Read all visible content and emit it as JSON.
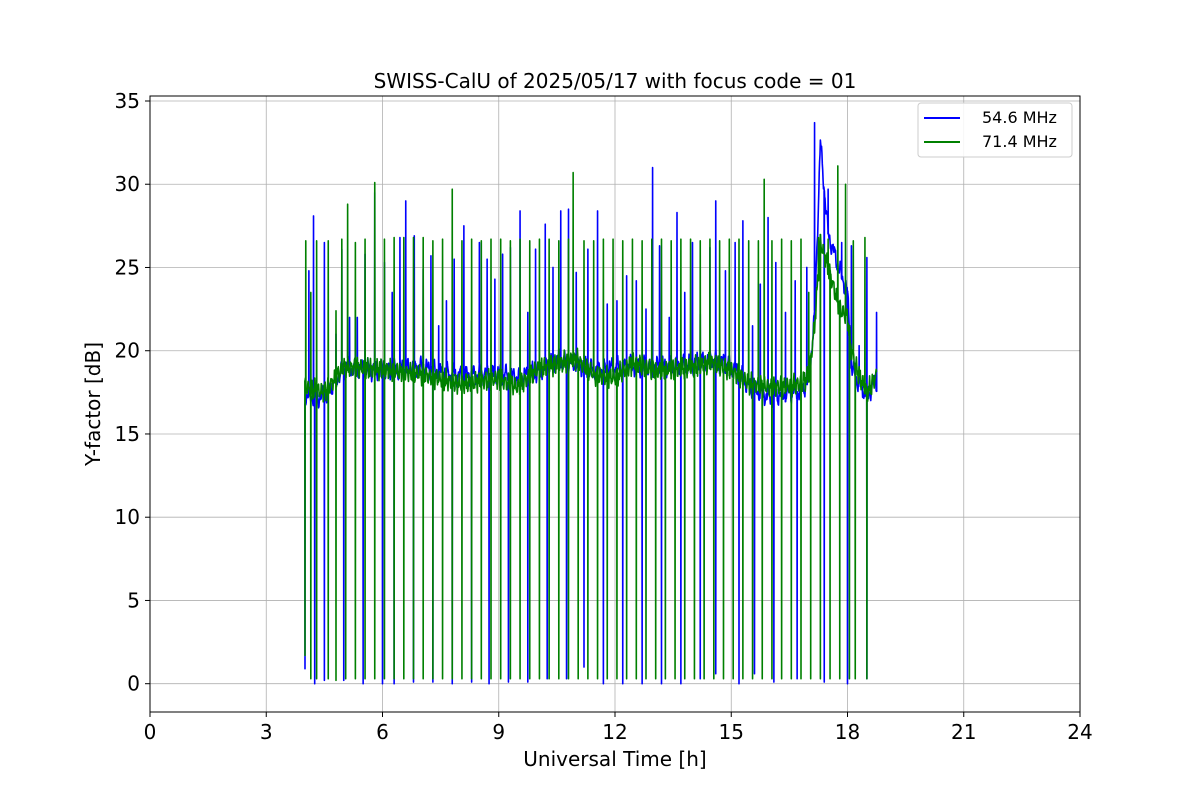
{
  "chart_data": {
    "type": "line",
    "title": "SWISS-CalU of 2025/05/17 with focus code = 01",
    "xlabel": "Universal Time [h]",
    "ylabel": "Y-factor [dB]",
    "xlim": [
      0,
      24
    ],
    "ylim": [
      -1.7,
      35.3
    ],
    "xticks": [
      0,
      3,
      6,
      9,
      12,
      15,
      18,
      21,
      24
    ],
    "yticks": [
      0,
      5,
      10,
      15,
      20,
      25,
      30,
      35
    ],
    "grid": true,
    "legend_position": "top-right",
    "data_start_h": 4.0,
    "data_end_h": 18.75,
    "series": [
      {
        "name": "54.6 MHz",
        "color": "#0000ff",
        "baseline": [
          [
            4.0,
            17.3
          ],
          [
            4.5,
            17.2
          ],
          [
            5.0,
            19.0
          ],
          [
            6.0,
            18.8
          ],
          [
            7.0,
            19.0
          ],
          [
            8.0,
            18.5
          ],
          [
            9.0,
            18.6
          ],
          [
            9.5,
            18.4
          ],
          [
            10.0,
            18.7
          ],
          [
            10.5,
            19.5
          ],
          [
            11.0,
            19.2
          ],
          [
            11.5,
            18.8
          ],
          [
            12.0,
            19.0
          ],
          [
            12.5,
            19.1
          ],
          [
            13.0,
            19.0
          ],
          [
            14.0,
            19.2
          ],
          [
            14.5,
            19.5
          ],
          [
            15.0,
            19.1
          ],
          [
            15.5,
            17.8
          ],
          [
            16.0,
            17.2
          ],
          [
            16.5,
            17.5
          ],
          [
            16.8,
            17.6
          ],
          [
            17.0,
            18.2
          ],
          [
            17.15,
            22.0
          ],
          [
            17.3,
            32.5
          ],
          [
            17.5,
            27.0
          ],
          [
            17.8,
            24.8
          ],
          [
            18.0,
            23.5
          ],
          [
            18.1,
            19.0
          ],
          [
            18.3,
            18.0
          ],
          [
            18.5,
            17.3
          ],
          [
            18.75,
            18.2
          ]
        ],
        "peaks": [
          [
            4.1,
            24.8
          ],
          [
            4.22,
            28.1
          ],
          [
            4.5,
            26.5
          ],
          [
            4.8,
            21.0
          ],
          [
            4.95,
            26.1
          ],
          [
            5.15,
            22.0
          ],
          [
            5.35,
            22.0
          ],
          [
            5.55,
            25.8
          ],
          [
            5.8,
            29.5
          ],
          [
            6.05,
            25.3
          ],
          [
            6.25,
            23.5
          ],
          [
            6.45,
            26.8
          ],
          [
            6.6,
            29.0
          ],
          [
            6.82,
            26.9
          ],
          [
            7.05,
            24.9
          ],
          [
            7.25,
            25.7
          ],
          [
            7.45,
            21.5
          ],
          [
            7.65,
            23.0
          ],
          [
            7.85,
            25.5
          ],
          [
            8.1,
            27.5
          ],
          [
            8.3,
            21.8
          ],
          [
            8.5,
            26.5
          ],
          [
            8.7,
            25.5
          ],
          [
            8.9,
            24.3
          ],
          [
            9.1,
            25.8
          ],
          [
            9.3,
            26.2
          ],
          [
            9.55,
            28.4
          ],
          [
            9.75,
            22.3
          ],
          [
            9.95,
            26.1
          ],
          [
            10.2,
            27.6
          ],
          [
            10.4,
            25.0
          ],
          [
            10.6,
            28.4
          ],
          [
            10.8,
            28.5
          ],
          [
            11.0,
            24.7
          ],
          [
            11.3,
            26.1
          ],
          [
            11.55,
            28.4
          ],
          [
            11.8,
            22.8
          ],
          [
            12.05,
            23.0
          ],
          [
            12.3,
            24.5
          ],
          [
            12.55,
            24.2
          ],
          [
            12.8,
            22.5
          ],
          [
            12.97,
            31.0
          ],
          [
            13.15,
            26.3
          ],
          [
            13.4,
            22.0
          ],
          [
            13.6,
            28.3
          ],
          [
            13.8,
            23.5
          ],
          [
            14.0,
            26.5
          ],
          [
            14.2,
            22.2
          ],
          [
            14.45,
            26.2
          ],
          [
            14.6,
            29.0
          ],
          [
            14.85,
            24.8
          ],
          [
            15.1,
            26.5
          ],
          [
            15.3,
            27.8
          ],
          [
            15.55,
            21.5
          ],
          [
            15.75,
            24.0
          ],
          [
            15.95,
            28.0
          ],
          [
            16.15,
            25.3
          ],
          [
            16.4,
            22.3
          ],
          [
            16.65,
            24.2
          ],
          [
            16.95,
            25.0
          ],
          [
            17.15,
            33.7
          ],
          [
            17.5,
            29.7
          ],
          [
            17.85,
            26.5
          ],
          [
            18.1,
            26.3
          ],
          [
            18.3,
            20.3
          ],
          [
            18.5,
            25.6
          ],
          [
            18.75,
            22.3
          ]
        ],
        "dips": [
          [
            4.0,
            0.9
          ],
          [
            4.25,
            0.0
          ],
          [
            4.5,
            0.2
          ],
          [
            5.0,
            0.2
          ],
          [
            5.5,
            0.0
          ],
          [
            6.0,
            0.0
          ],
          [
            6.3,
            0.0
          ],
          [
            6.8,
            0.1
          ],
          [
            7.3,
            0.1
          ],
          [
            7.8,
            0.0
          ],
          [
            8.3,
            0.1
          ],
          [
            8.75,
            0.0
          ],
          [
            9.25,
            0.1
          ],
          [
            9.75,
            0.1
          ],
          [
            10.25,
            0.3
          ],
          [
            10.75,
            0.3
          ],
          [
            11.2,
            1.0
          ],
          [
            11.7,
            0.0
          ],
          [
            12.2,
            0.0
          ],
          [
            12.7,
            0.0
          ],
          [
            13.2,
            0.0
          ],
          [
            13.7,
            0.0
          ],
          [
            14.2,
            0.3
          ],
          [
            14.6,
            0.6
          ],
          [
            15.2,
            0.0
          ],
          [
            15.6,
            0.6
          ],
          [
            16.1,
            0.1
          ],
          [
            16.7,
            0.3
          ],
          [
            17.4,
            0.1
          ],
          [
            18.0,
            0.0
          ],
          [
            18.5,
            0.3
          ]
        ]
      },
      {
        "name": "71.4 MHz",
        "color": "#008000",
        "baseline": [
          [
            4.0,
            17.8
          ],
          [
            4.5,
            17.5
          ],
          [
            5.0,
            19.0
          ],
          [
            6.0,
            18.9
          ],
          [
            7.0,
            18.6
          ],
          [
            8.0,
            18.0
          ],
          [
            9.0,
            18.3
          ],
          [
            9.5,
            17.8
          ],
          [
            10.0,
            18.9
          ],
          [
            10.5,
            19.2
          ],
          [
            11.0,
            19.5
          ],
          [
            11.5,
            18.5
          ],
          [
            12.0,
            18.4
          ],
          [
            12.5,
            19.3
          ],
          [
            13.0,
            18.8
          ],
          [
            14.0,
            19.0
          ],
          [
            14.5,
            19.3
          ],
          [
            15.0,
            18.8
          ],
          [
            15.5,
            18.0
          ],
          [
            16.0,
            17.8
          ],
          [
            16.5,
            17.9
          ],
          [
            16.8,
            18.0
          ],
          [
            17.0,
            18.5
          ],
          [
            17.15,
            21.5
          ],
          [
            17.3,
            26.5
          ],
          [
            17.5,
            25.0
          ],
          [
            17.8,
            22.5
          ],
          [
            18.0,
            22.0
          ],
          [
            18.1,
            20.0
          ],
          [
            18.3,
            18.5
          ],
          [
            18.5,
            17.5
          ],
          [
            18.75,
            18.5
          ]
        ],
        "peaks": [
          [
            4.02,
            26.6
          ],
          [
            4.15,
            23.5
          ],
          [
            4.3,
            26.6
          ],
          [
            4.6,
            26.6
          ],
          [
            4.8,
            22.4
          ],
          [
            4.95,
            26.7
          ],
          [
            5.1,
            28.8
          ],
          [
            5.3,
            26.5
          ],
          [
            5.55,
            26.7
          ],
          [
            5.8,
            30.1
          ],
          [
            6.05,
            26.7
          ],
          [
            6.3,
            26.8
          ],
          [
            6.55,
            26.8
          ],
          [
            6.8,
            26.8
          ],
          [
            7.05,
            26.8
          ],
          [
            7.3,
            26.6
          ],
          [
            7.55,
            26.7
          ],
          [
            7.8,
            29.7
          ],
          [
            8.05,
            26.6
          ],
          [
            8.3,
            26.7
          ],
          [
            8.55,
            26.6
          ],
          [
            8.8,
            26.7
          ],
          [
            9.05,
            26.7
          ],
          [
            9.3,
            26.6
          ],
          [
            9.55,
            26.7
          ],
          [
            9.8,
            26.6
          ],
          [
            10.05,
            26.7
          ],
          [
            10.3,
            26.7
          ],
          [
            10.55,
            26.6
          ],
          [
            10.8,
            26.7
          ],
          [
            10.92,
            30.7
          ],
          [
            11.2,
            26.6
          ],
          [
            11.45,
            26.6
          ],
          [
            11.7,
            26.7
          ],
          [
            11.95,
            26.7
          ],
          [
            12.2,
            26.6
          ],
          [
            12.45,
            26.7
          ],
          [
            12.7,
            26.6
          ],
          [
            12.95,
            26.7
          ],
          [
            13.2,
            26.7
          ],
          [
            13.45,
            26.6
          ],
          [
            13.7,
            26.7
          ],
          [
            13.95,
            26.7
          ],
          [
            14.2,
            26.6
          ],
          [
            14.45,
            26.7
          ],
          [
            14.7,
            26.6
          ],
          [
            14.95,
            26.7
          ],
          [
            15.2,
            26.7
          ],
          [
            15.45,
            26.6
          ],
          [
            15.7,
            26.6
          ],
          [
            15.85,
            30.3
          ],
          [
            16.05,
            26.6
          ],
          [
            16.3,
            26.7
          ],
          [
            16.55,
            26.6
          ],
          [
            16.8,
            26.7
          ],
          [
            17.0,
            23.5
          ],
          [
            17.25,
            26.8
          ],
          [
            17.5,
            26.7
          ],
          [
            17.75,
            31.1
          ],
          [
            17.95,
            30.0
          ],
          [
            18.15,
            26.6
          ],
          [
            18.45,
            26.8
          ]
        ],
        "dips": [
          [
            4.0,
            1.7
          ],
          [
            4.15,
            0.3
          ],
          [
            4.3,
            0.3
          ],
          [
            4.6,
            0.3
          ],
          [
            4.8,
            0.2
          ],
          [
            5.05,
            0.3
          ],
          [
            5.3,
            0.3
          ],
          [
            5.55,
            0.3
          ],
          [
            5.8,
            0.3
          ],
          [
            6.05,
            0.3
          ],
          [
            6.3,
            0.3
          ],
          [
            6.55,
            0.3
          ],
          [
            6.8,
            0.3
          ],
          [
            7.05,
            0.3
          ],
          [
            7.3,
            0.3
          ],
          [
            7.55,
            0.3
          ],
          [
            7.8,
            0.3
          ],
          [
            8.05,
            0.3
          ],
          [
            8.3,
            0.3
          ],
          [
            8.55,
            0.3
          ],
          [
            8.8,
            0.3
          ],
          [
            9.05,
            0.3
          ],
          [
            9.3,
            0.3
          ],
          [
            9.55,
            0.3
          ],
          [
            9.8,
            0.3
          ],
          [
            10.05,
            0.3
          ],
          [
            10.3,
            0.3
          ],
          [
            10.55,
            0.3
          ],
          [
            10.8,
            0.3
          ],
          [
            11.05,
            0.3
          ],
          [
            11.3,
            0.3
          ],
          [
            11.55,
            0.3
          ],
          [
            11.8,
            0.3
          ],
          [
            12.05,
            0.3
          ],
          [
            12.3,
            0.3
          ],
          [
            12.55,
            0.3
          ],
          [
            12.8,
            0.3
          ],
          [
            13.05,
            0.3
          ],
          [
            13.3,
            0.3
          ],
          [
            13.55,
            0.3
          ],
          [
            13.8,
            0.3
          ],
          [
            14.05,
            0.3
          ],
          [
            14.3,
            0.3
          ],
          [
            14.55,
            0.3
          ],
          [
            14.8,
            0.3
          ],
          [
            15.05,
            0.3
          ],
          [
            15.3,
            0.3
          ],
          [
            15.55,
            0.3
          ],
          [
            15.8,
            0.3
          ],
          [
            16.05,
            0.3
          ],
          [
            16.3,
            0.3
          ],
          [
            16.55,
            0.3
          ],
          [
            16.8,
            0.3
          ],
          [
            17.05,
            0.3
          ],
          [
            17.3,
            0.3
          ],
          [
            17.55,
            0.3
          ],
          [
            17.8,
            0.3
          ],
          [
            18.05,
            0.3
          ],
          [
            18.2,
            0.3
          ],
          [
            18.5,
            0.3
          ]
        ]
      }
    ]
  }
}
